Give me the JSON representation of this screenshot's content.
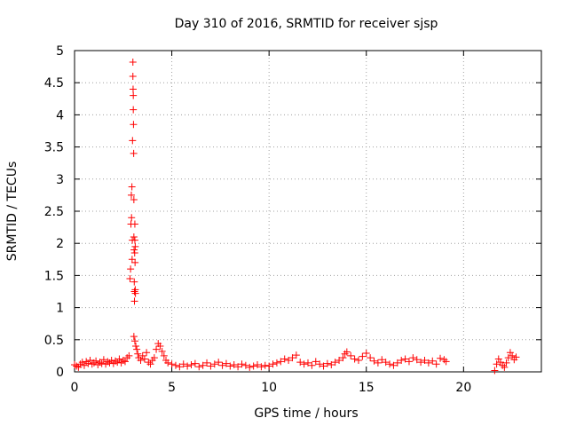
{
  "chart_data": {
    "type": "scatter",
    "title": "Day 310 of 2016, SRMTID for receiver sjsp",
    "xlabel": "GPS time / hours",
    "ylabel": "SRMTID / TECUs",
    "xlim": [
      0,
      24
    ],
    "ylim": [
      0,
      5
    ],
    "xticks": [
      "0",
      "5",
      "10",
      "15",
      "20"
    ],
    "yticks": [
      "0",
      "0.5",
      "1",
      "1.5",
      "2",
      "2.5",
      "3",
      "3.5",
      "4",
      "4.5",
      "5"
    ],
    "grid": true,
    "marker": "plus",
    "color": "#ff0000",
    "series": [
      {
        "points": [
          [
            0.0,
            0.11
          ],
          [
            0.1,
            0.09
          ],
          [
            0.2,
            0.07
          ],
          [
            0.3,
            0.12
          ],
          [
            0.4,
            0.15
          ],
          [
            0.5,
            0.1
          ],
          [
            0.6,
            0.16
          ],
          [
            0.7,
            0.13
          ],
          [
            0.8,
            0.18
          ],
          [
            0.9,
            0.12
          ],
          [
            1.0,
            0.14
          ],
          [
            1.1,
            0.17
          ],
          [
            1.2,
            0.11
          ],
          [
            1.3,
            0.15
          ],
          [
            1.4,
            0.13
          ],
          [
            1.5,
            0.19
          ],
          [
            1.6,
            0.12
          ],
          [
            1.7,
            0.16
          ],
          [
            1.8,
            0.14
          ],
          [
            1.9,
            0.18
          ],
          [
            2.0,
            0.13
          ],
          [
            2.1,
            0.17
          ],
          [
            2.2,
            0.15
          ],
          [
            2.3,
            0.2
          ],
          [
            2.4,
            0.14
          ],
          [
            2.5,
            0.18
          ],
          [
            2.6,
            0.16
          ],
          [
            2.7,
            0.22
          ],
          [
            2.8,
            0.25
          ],
          [
            2.85,
            1.45
          ],
          [
            2.88,
            1.6
          ],
          [
            2.9,
            2.3
          ],
          [
            2.92,
            2.75
          ],
          [
            2.93,
            2.4
          ],
          [
            2.95,
            2.88
          ],
          [
            2.96,
            1.75
          ],
          [
            2.97,
            2.05
          ],
          [
            2.98,
            3.6
          ],
          [
            3.0,
            4.82
          ],
          [
            3.0,
            4.6
          ],
          [
            3.01,
            4.4
          ],
          [
            3.02,
            4.3
          ],
          [
            3.02,
            4.08
          ],
          [
            3.03,
            3.85
          ],
          [
            3.04,
            3.4
          ],
          [
            3.05,
            2.68
          ],
          [
            3.05,
            2.1
          ],
          [
            3.06,
            1.9
          ],
          [
            3.07,
            1.4
          ],
          [
            3.08,
            1.25
          ],
          [
            3.08,
            1.1
          ],
          [
            3.09,
            1.85
          ],
          [
            3.1,
            2.05
          ],
          [
            3.1,
            2.3
          ],
          [
            3.11,
            1.7
          ],
          [
            3.12,
            1.95
          ],
          [
            3.12,
            1.28
          ],
          [
            3.13,
            1.22
          ],
          [
            3.05,
            0.55
          ],
          [
            3.1,
            0.48
          ],
          [
            3.15,
            0.4
          ],
          [
            3.2,
            0.35
          ],
          [
            3.25,
            0.28
          ],
          [
            3.3,
            0.22
          ],
          [
            3.4,
            0.18
          ],
          [
            3.5,
            0.25
          ],
          [
            3.6,
            0.2
          ],
          [
            3.7,
            0.3
          ],
          [
            3.8,
            0.15
          ],
          [
            3.9,
            0.12
          ],
          [
            4.0,
            0.18
          ],
          [
            4.1,
            0.22
          ],
          [
            4.2,
            0.35
          ],
          [
            4.3,
            0.44
          ],
          [
            4.4,
            0.4
          ],
          [
            4.5,
            0.32
          ],
          [
            4.6,
            0.25
          ],
          [
            4.7,
            0.18
          ],
          [
            4.8,
            0.14
          ],
          [
            5.0,
            0.12
          ],
          [
            5.2,
            0.1
          ],
          [
            5.4,
            0.08
          ],
          [
            5.6,
            0.12
          ],
          [
            5.8,
            0.09
          ],
          [
            6.0,
            0.11
          ],
          [
            6.2,
            0.13
          ],
          [
            6.4,
            0.08
          ],
          [
            6.6,
            0.1
          ],
          [
            6.8,
            0.14
          ],
          [
            7.0,
            0.09
          ],
          [
            7.2,
            0.12
          ],
          [
            7.4,
            0.15
          ],
          [
            7.6,
            0.1
          ],
          [
            7.8,
            0.13
          ],
          [
            8.0,
            0.09
          ],
          [
            8.2,
            0.11
          ],
          [
            8.4,
            0.08
          ],
          [
            8.6,
            0.12
          ],
          [
            8.8,
            0.1
          ],
          [
            9.0,
            0.07
          ],
          [
            9.2,
            0.09
          ],
          [
            9.4,
            0.11
          ],
          [
            9.6,
            0.08
          ],
          [
            9.8,
            0.1
          ],
          [
            10.0,
            0.09
          ],
          [
            10.2,
            0.12
          ],
          [
            10.4,
            0.14
          ],
          [
            10.6,
            0.16
          ],
          [
            10.8,
            0.2
          ],
          [
            11.0,
            0.18
          ],
          [
            11.2,
            0.22
          ],
          [
            11.4,
            0.26
          ],
          [
            11.6,
            0.15
          ],
          [
            11.8,
            0.12
          ],
          [
            12.0,
            0.14
          ],
          [
            12.2,
            0.1
          ],
          [
            12.4,
            0.16
          ],
          [
            12.6,
            0.12
          ],
          [
            12.8,
            0.09
          ],
          [
            13.0,
            0.13
          ],
          [
            13.2,
            0.11
          ],
          [
            13.4,
            0.15
          ],
          [
            13.6,
            0.18
          ],
          [
            13.8,
            0.22
          ],
          [
            13.9,
            0.28
          ],
          [
            14.0,
            0.31
          ],
          [
            14.2,
            0.25
          ],
          [
            14.4,
            0.2
          ],
          [
            14.6,
            0.18
          ],
          [
            14.8,
            0.24
          ],
          [
            15.0,
            0.29
          ],
          [
            15.2,
            0.22
          ],
          [
            15.4,
            0.17
          ],
          [
            15.6,
            0.14
          ],
          [
            15.8,
            0.19
          ],
          [
            16.0,
            0.15
          ],
          [
            16.2,
            0.12
          ],
          [
            16.4,
            0.1
          ],
          [
            16.6,
            0.14
          ],
          [
            16.8,
            0.18
          ],
          [
            17.0,
            0.2
          ],
          [
            17.2,
            0.16
          ],
          [
            17.4,
            0.22
          ],
          [
            17.6,
            0.19
          ],
          [
            17.8,
            0.15
          ],
          [
            18.0,
            0.18
          ],
          [
            18.2,
            0.14
          ],
          [
            18.4,
            0.17
          ],
          [
            18.6,
            0.12
          ],
          [
            18.8,
            0.21
          ],
          [
            19.0,
            0.19
          ],
          [
            19.1,
            0.16
          ],
          [
            21.6,
            0.02
          ],
          [
            21.7,
            0.12
          ],
          [
            21.8,
            0.2
          ],
          [
            21.9,
            0.15
          ],
          [
            22.0,
            0.1
          ],
          [
            22.1,
            0.07
          ],
          [
            22.2,
            0.14
          ],
          [
            22.3,
            0.22
          ],
          [
            22.4,
            0.3
          ],
          [
            22.5,
            0.25
          ],
          [
            22.6,
            0.19
          ],
          [
            22.7,
            0.23
          ]
        ]
      }
    ]
  }
}
